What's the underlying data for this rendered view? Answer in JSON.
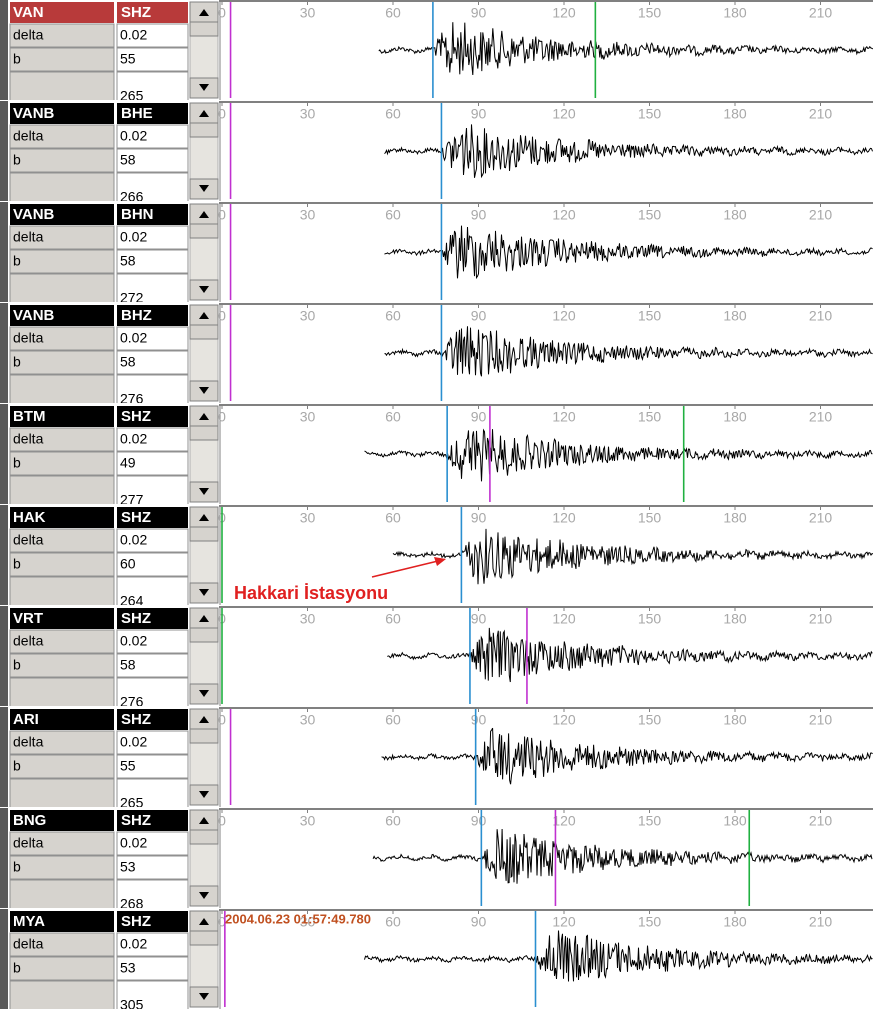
{
  "time_ticks": [
    0,
    30,
    60,
    90,
    120,
    150,
    180,
    210
  ],
  "panels": [
    {
      "station": "VAN",
      "channel": "SHZ",
      "delta_label": "delta",
      "delta": 0.02,
      "b_label": "b",
      "b": 55,
      "extra": 265,
      "selected": true,
      "start": 55,
      "picks": [
        {
          "time": 3,
          "color": "#c030d0"
        },
        {
          "time": 74,
          "color": "#2a8fd0"
        },
        {
          "time": 131,
          "color": "#20b040"
        }
      ]
    },
    {
      "station": "VANB",
      "channel": "BHE",
      "delta_label": "delta",
      "delta": 0.02,
      "b_label": "b",
      "b": 58,
      "extra": 266,
      "selected": false,
      "start": 57,
      "picks": [
        {
          "time": 3,
          "color": "#c030d0"
        },
        {
          "time": 77,
          "color": "#2a8fd0"
        }
      ]
    },
    {
      "station": "VANB",
      "channel": "BHN",
      "delta_label": "delta",
      "delta": 0.02,
      "b_label": "b",
      "b": 58,
      "extra": 272,
      "selected": false,
      "start": 57,
      "picks": [
        {
          "time": 3,
          "color": "#c030d0"
        },
        {
          "time": 77,
          "color": "#2a8fd0"
        }
      ]
    },
    {
      "station": "VANB",
      "channel": "BHZ",
      "delta_label": "delta",
      "delta": 0.02,
      "b_label": "b",
      "b": 58,
      "extra": 276,
      "selected": false,
      "start": 57,
      "picks": [
        {
          "time": 3,
          "color": "#c030d0"
        },
        {
          "time": 77,
          "color": "#2a8fd0"
        }
      ]
    },
    {
      "station": "BTM",
      "channel": "SHZ",
      "delta_label": "delta",
      "delta": 0.02,
      "b_label": "b",
      "b": 49,
      "extra": 277,
      "selected": false,
      "start": 50,
      "picks": [
        {
          "time": 79,
          "color": "#2a8fd0"
        },
        {
          "time": 94,
          "color": "#c030d0"
        },
        {
          "time": 162,
          "color": "#20b040"
        }
      ]
    },
    {
      "station": "HAK",
      "channel": "SHZ",
      "delta_label": "delta",
      "delta": 0.02,
      "b_label": "b",
      "b": 60,
      "extra": 264,
      "selected": false,
      "start": 60,
      "annotation": "Hakkari İstasyonu",
      "picks": [
        {
          "time": 0,
          "color": "#20b040"
        },
        {
          "time": 84,
          "color": "#2a8fd0"
        }
      ]
    },
    {
      "station": "VRT",
      "channel": "SHZ",
      "delta_label": "delta",
      "delta": 0.02,
      "b_label": "b",
      "b": 58,
      "extra": 276,
      "selected": false,
      "start": 58,
      "picks": [
        {
          "time": 0,
          "color": "#20b040"
        },
        {
          "time": 87,
          "color": "#2a8fd0"
        },
        {
          "time": 107,
          "color": "#c030d0"
        }
      ]
    },
    {
      "station": "ARI",
      "channel": "SHZ",
      "delta_label": "delta",
      "delta": 0.02,
      "b_label": "b",
      "b": 55,
      "extra": 265,
      "selected": false,
      "start": 56,
      "picks": [
        {
          "time": 3,
          "color": "#c030d0"
        },
        {
          "time": 89,
          "color": "#2a8fd0"
        }
      ]
    },
    {
      "station": "BNG",
      "channel": "SHZ",
      "delta_label": "delta",
      "delta": 0.02,
      "b_label": "b",
      "b": 53,
      "extra": 268,
      "selected": false,
      "start": 53,
      "picks": [
        {
          "time": 91,
          "color": "#2a8fd0"
        },
        {
          "time": 117,
          "color": "#c030d0"
        },
        {
          "time": 185,
          "color": "#20b040"
        }
      ]
    },
    {
      "station": "MYA",
      "channel": "SHZ",
      "delta_label": "delta",
      "delta": 0.02,
      "b_label": "b",
      "b": 53,
      "extra": 305,
      "selected": false,
      "start": 50,
      "timestamp": "2004.06.23 01:57:49.780",
      "picks": [
        {
          "time": 1,
          "color": "#c030d0"
        },
        {
          "time": 110,
          "color": "#2a8fd0"
        }
      ]
    }
  ]
}
